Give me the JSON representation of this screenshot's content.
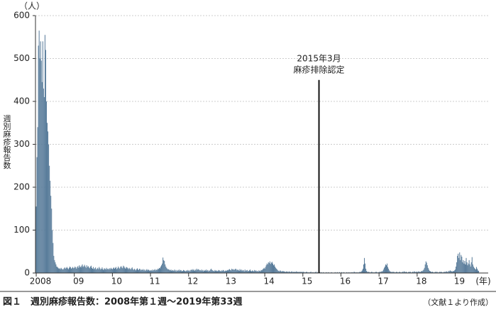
{
  "chart_data": {
    "type": "bar",
    "title": "図１　週別麻疹報告数：2008年第１週～2019年第33週",
    "source": "（文献１より作成）",
    "ylabel": "週別麻疹報告数",
    "y_unit": "（人）",
    "x_unit": "(年)",
    "color": "#5a7d9b",
    "grid": true,
    "ylim": [
      0,
      600
    ],
    "yticks": [
      0,
      100,
      200,
      300,
      400,
      500,
      600
    ],
    "xlim": [
      -1,
      617
    ],
    "xticks": [
      {
        "value": 0,
        "label": "2008"
      },
      {
        "value": 52,
        "label": "09"
      },
      {
        "value": 104,
        "label": "10"
      },
      {
        "value": 156,
        "label": "11"
      },
      {
        "value": 208,
        "label": "12"
      },
      {
        "value": 260,
        "label": "13"
      },
      {
        "value": 312,
        "label": "14"
      },
      {
        "value": 364,
        "label": "15"
      },
      {
        "value": 416,
        "label": "16"
      },
      {
        "value": 468,
        "label": "17"
      },
      {
        "value": 520,
        "label": "18"
      },
      {
        "value": 572,
        "label": "19"
      }
    ],
    "annotation": {
      "lines": [
        "2015年3月",
        "麻疹排除認定"
      ],
      "x": 386,
      "y": 450
    },
    "x": [
      0,
      1,
      2,
      3,
      4,
      5,
      6,
      7,
      8,
      9,
      10,
      11,
      12,
      13,
      14,
      15,
      16,
      17,
      18,
      19,
      20,
      21,
      22,
      23,
      24,
      25,
      26,
      27,
      28,
      29,
      30,
      31,
      32,
      33,
      34,
      35,
      36,
      37,
      38,
      39,
      40,
      41,
      42,
      43,
      44,
      45,
      46,
      47,
      48,
      49,
      50,
      51,
      52,
      53,
      54,
      55,
      56,
      57,
      58,
      59,
      60,
      61,
      62,
      63,
      64,
      65,
      66,
      67,
      68,
      69,
      70,
      71,
      72,
      73,
      74,
      75,
      76,
      77,
      78,
      79,
      80,
      81,
      82,
      83,
      84,
      85,
      86,
      87,
      88,
      89,
      90,
      91,
      92,
      93,
      94,
      95,
      96,
      97,
      98,
      99,
      100,
      101,
      102,
      103,
      104,
      105,
      106,
      107,
      108,
      109,
      110,
      111,
      112,
      113,
      114,
      115,
      116,
      117,
      118,
      119,
      120,
      121,
      122,
      123,
      124,
      125,
      126,
      127,
      128,
      129,
      130,
      131,
      132,
      133,
      134,
      135,
      136,
      137,
      138,
      139,
      140,
      141,
      142,
      143,
      144,
      145,
      146,
      147,
      148,
      149,
      150,
      151,
      152,
      153,
      154,
      155,
      156,
      157,
      158,
      159,
      160,
      161,
      162,
      163,
      164,
      165,
      166,
      167,
      168,
      169,
      170,
      171,
      172,
      173,
      174,
      175,
      176,
      177,
      178,
      179,
      180,
      181,
      182,
      183,
      184,
      185,
      186,
      187,
      188,
      189,
      190,
      191,
      192,
      193,
      194,
      195,
      196,
      197,
      198,
      199,
      200,
      201,
      202,
      203,
      204,
      205,
      206,
      207,
      208,
      209,
      210,
      211,
      212,
      213,
      214,
      215,
      216,
      217,
      218,
      219,
      220,
      221,
      222,
      223,
      224,
      225,
      226,
      227,
      228,
      229,
      230,
      231,
      232,
      233,
      234,
      235,
      236,
      237,
      238,
      239,
      240,
      241,
      242,
      243,
      244,
      245,
      246,
      247,
      248,
      249,
      250,
      251,
      252,
      253,
      254,
      255,
      256,
      257,
      258,
      259,
      260,
      261,
      262,
      263,
      264,
      265,
      266,
      267,
      268,
      269,
      270,
      271,
      272,
      273,
      274,
      275,
      276,
      277,
      278,
      279,
      280,
      281,
      282,
      283,
      284,
      285,
      286,
      287,
      288,
      289,
      290,
      291,
      292,
      293,
      294,
      295,
      296,
      297,
      298,
      299,
      300,
      301,
      302,
      303,
      304,
      305,
      306,
      307,
      308,
      309,
      310,
      311,
      312,
      313,
      314,
      315,
      316,
      317,
      318,
      319,
      320,
      321,
      322,
      323,
      324,
      325,
      326,
      327,
      328,
      329,
      330,
      331,
      332,
      333,
      334,
      335,
      336,
      337,
      338,
      339,
      340,
      341,
      342,
      343,
      344,
      345,
      346,
      347,
      348,
      349,
      350,
      351,
      352,
      353,
      354,
      355,
      356,
      357,
      358,
      359,
      360,
      361,
      362,
      363,
      364,
      365,
      366,
      367,
      368,
      369,
      370,
      371,
      372,
      373,
      374,
      375,
      376,
      377,
      378,
      379,
      380,
      381,
      382,
      383,
      384,
      385,
      386,
      387,
      388,
      389,
      390,
      391,
      392,
      393,
      394,
      395,
      396,
      397,
      398,
      399,
      400,
      401,
      402,
      403,
      404,
      405,
      406,
      407,
      408,
      409,
      410,
      411,
      412,
      413,
      414,
      415,
      416,
      417,
      418,
      419,
      420,
      421,
      422,
      423,
      424,
      425,
      426,
      427,
      428,
      429,
      430,
      431,
      432,
      433,
      434,
      435,
      436,
      437,
      438,
      439,
      440,
      441,
      442,
      443,
      444,
      445,
      446,
      447,
      448,
      449,
      450,
      451,
      452,
      453,
      454,
      455,
      456,
      457,
      458,
      459,
      460,
      461,
      462,
      463,
      464,
      465,
      466,
      467,
      468,
      469,
      470,
      471,
      472,
      473,
      474,
      475,
      476,
      477,
      478,
      479,
      480,
      481,
      482,
      483,
      484,
      485,
      486,
      487,
      488,
      489,
      490,
      491,
      492,
      493,
      494,
      495,
      496,
      497,
      498,
      499,
      500,
      501,
      502,
      503,
      504,
      505,
      506,
      507,
      508,
      509,
      510,
      511,
      512,
      513,
      514,
      515,
      516,
      517,
      518,
      519,
      520,
      521,
      522,
      523,
      524,
      525,
      526,
      527,
      528,
      529,
      530,
      531,
      532,
      533,
      534,
      535,
      536,
      537,
      538,
      539,
      540,
      541,
      542,
      543,
      544,
      545,
      546,
      547,
      548,
      549,
      550,
      551,
      552,
      553,
      554,
      555,
      556,
      557,
      558,
      559,
      560,
      561,
      562,
      563,
      564,
      565,
      566,
      567,
      568,
      569,
      570,
      571,
      572,
      573,
      574,
      575,
      576,
      577,
      578,
      579,
      580,
      581,
      582,
      583,
      584,
      585,
      586,
      587,
      588,
      589,
      590,
      591,
      592,
      593,
      594,
      595,
      596,
      597,
      598,
      599,
      600,
      601,
      602,
      603,
      604
    ],
    "values": [
      155,
      270,
      340,
      530,
      565,
      500,
      540,
      495,
      445,
      540,
      430,
      410,
      555,
      520,
      400,
      350,
      330,
      300,
      250,
      215,
      180,
      150,
      100,
      70,
      40,
      30,
      25,
      20,
      15,
      14,
      12,
      10,
      11,
      9,
      12,
      10,
      8,
      9,
      11,
      13,
      10,
      12,
      14,
      11,
      9,
      12,
      15,
      13,
      10,
      12,
      14,
      11,
      12,
      15,
      13,
      10,
      14,
      16,
      12,
      18,
      15,
      13,
      17,
      20,
      14,
      16,
      19,
      15,
      12,
      18,
      14,
      16,
      13,
      11,
      15,
      17,
      12,
      10,
      14,
      9,
      11,
      13,
      8,
      10,
      12,
      9,
      14,
      11,
      8,
      10,
      13,
      9,
      7,
      11,
      10,
      8,
      12,
      9,
      10,
      8,
      11,
      9,
      12,
      10,
      9,
      11,
      13,
      10,
      12,
      14,
      9,
      11,
      15,
      12,
      10,
      14,
      16,
      13,
      11,
      17,
      15,
      12,
      10,
      14,
      13,
      11,
      9,
      12,
      10,
      8,
      11,
      13,
      9,
      7,
      10,
      8,
      6,
      9,
      11,
      8,
      7,
      10,
      9,
      6,
      8,
      7,
      9,
      6,
      8,
      5,
      7,
      9,
      6,
      8,
      7,
      5,
      6,
      7,
      5,
      8,
      6,
      7,
      9,
      6,
      8,
      7,
      10,
      9,
      12,
      11,
      15,
      18,
      22,
      36,
      30,
      28,
      20,
      15,
      12,
      10,
      8,
      9,
      7,
      6,
      8,
      5,
      7,
      6,
      5,
      8,
      6,
      4,
      7,
      5,
      6,
      8,
      5,
      7,
      6,
      4,
      5,
      7,
      6,
      5,
      4,
      6,
      5,
      7,
      5,
      6,
      4,
      7,
      8,
      6,
      9,
      7,
      5,
      8,
      6,
      10,
      7,
      9,
      8,
      6,
      7,
      5,
      8,
      6,
      4,
      7,
      5,
      6,
      8,
      5,
      7,
      4,
      6,
      5,
      8,
      10,
      7,
      6,
      5,
      4,
      7,
      5,
      6,
      4,
      5,
      7,
      6,
      5,
      4,
      6,
      5,
      7,
      6,
      4,
      5,
      6,
      5,
      7,
      6,
      8,
      9,
      7,
      6,
      10,
      8,
      9,
      7,
      8,
      10,
      9,
      6,
      8,
      7,
      5,
      9,
      6,
      8,
      5,
      7,
      6,
      4,
      8,
      5,
      6,
      7,
      4,
      5,
      6,
      8,
      5,
      4,
      6,
      5,
      4,
      7,
      5,
      6,
      4,
      5,
      3,
      6,
      5,
      4,
      7,
      6,
      8,
      10,
      12,
      10,
      14,
      18,
      22,
      20,
      25,
      23,
      27,
      21,
      24,
      26,
      22,
      18,
      20,
      15,
      12,
      10,
      8,
      6,
      5,
      4,
      6,
      5,
      3,
      4,
      5,
      3,
      4,
      2,
      3,
      4,
      3,
      2,
      4,
      3,
      2,
      3,
      4,
      2,
      3,
      2,
      3,
      2,
      4,
      2,
      3,
      2,
      3,
      2,
      3,
      2,
      3,
      2,
      3,
      2,
      1,
      2,
      3,
      2,
      1,
      2,
      1,
      2,
      3,
      1,
      2,
      1,
      2,
      1,
      2,
      3,
      1,
      2,
      1,
      1,
      2,
      1,
      2,
      1,
      1,
      2,
      1,
      0,
      1,
      2,
      1,
      1,
      2,
      1,
      0,
      1,
      2,
      1,
      1,
      0,
      1,
      2,
      1,
      1,
      2,
      1,
      1,
      2,
      1,
      1,
      2,
      1,
      1,
      2,
      1,
      0,
      1,
      2,
      1,
      1,
      2,
      1,
      1,
      2,
      1,
      2,
      1,
      3,
      2,
      1,
      2,
      1,
      2,
      1,
      2,
      3,
      2,
      4,
      6,
      10,
      20,
      35,
      22,
      10,
      5,
      3,
      2,
      3,
      2,
      1,
      2,
      3,
      2,
      1,
      2,
      1,
      2,
      3,
      2,
      1,
      2,
      2,
      3,
      2,
      4,
      3,
      5,
      8,
      12,
      15,
      20,
      18,
      22,
      14,
      10,
      6,
      4,
      3,
      2,
      3,
      2,
      3,
      2,
      1,
      2,
      3,
      2,
      1,
      2,
      3,
      2,
      1,
      2,
      3,
      2,
      4,
      3,
      2,
      3,
      2,
      1,
      2,
      3,
      2,
      3,
      1,
      2,
      3,
      2,
      4,
      3,
      2,
      3,
      3,
      2,
      4,
      3,
      2,
      3,
      5,
      4,
      6,
      8,
      12,
      20,
      27,
      24,
      18,
      12,
      8,
      5,
      4,
      3,
      2,
      3,
      2,
      1,
      2,
      3,
      2,
      3,
      2,
      1,
      2,
      3,
      2,
      3,
      2,
      1,
      2,
      3,
      2,
      3,
      4,
      3,
      2,
      5,
      4,
      6,
      5,
      4,
      3,
      5,
      4,
      6,
      8,
      15,
      25,
      40,
      45,
      35,
      48,
      30,
      42,
      38,
      25,
      30,
      22,
      28,
      20,
      35,
      25,
      18,
      22,
      30,
      20,
      15,
      25,
      37,
      20,
      15,
      12,
      10,
      8,
      14,
      10,
      6,
      5
    ]
  }
}
